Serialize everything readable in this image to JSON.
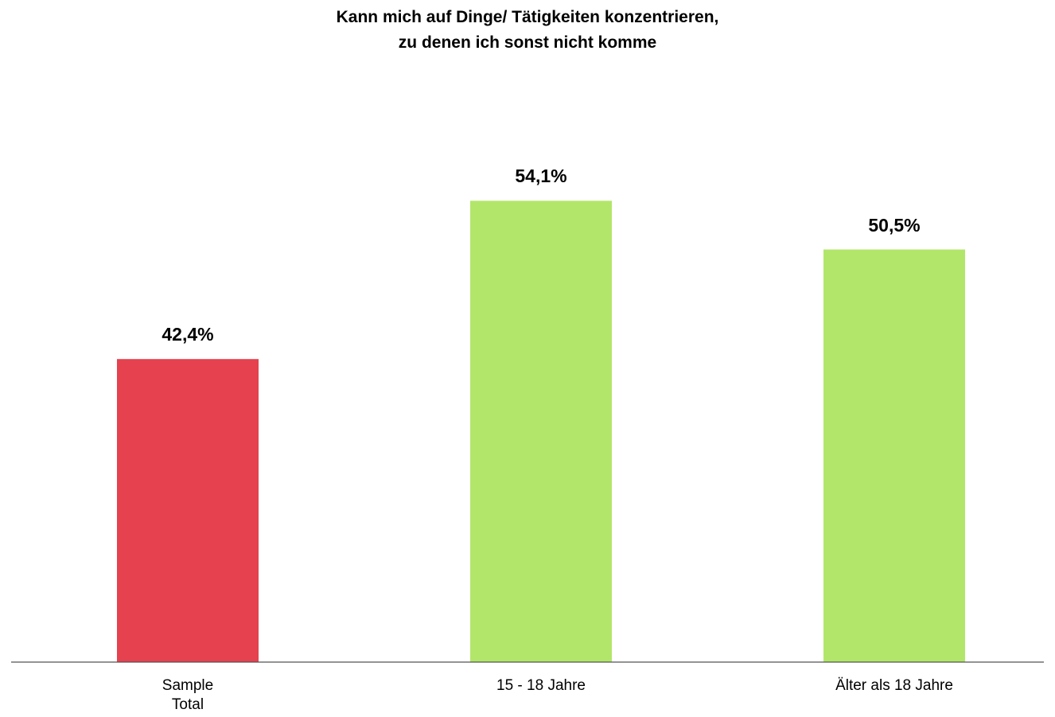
{
  "chart_data": {
    "type": "bar",
    "title": "Kann mich auf Dinge/ Tätigkeiten konzentrieren,\nzu denen ich sonst nicht komme",
    "categories": [
      "Sample\nTotal",
      "15 - 18 Jahre",
      "Älter als 18 Jahre"
    ],
    "values": [
      42.4,
      54.1,
      50.5
    ],
    "value_labels": [
      "42,4%",
      "54,1%",
      "50,5%"
    ],
    "colors": [
      "#e5414f",
      "#b2e66a",
      "#b2e66a"
    ],
    "ylim": [
      20,
      60
    ]
  }
}
